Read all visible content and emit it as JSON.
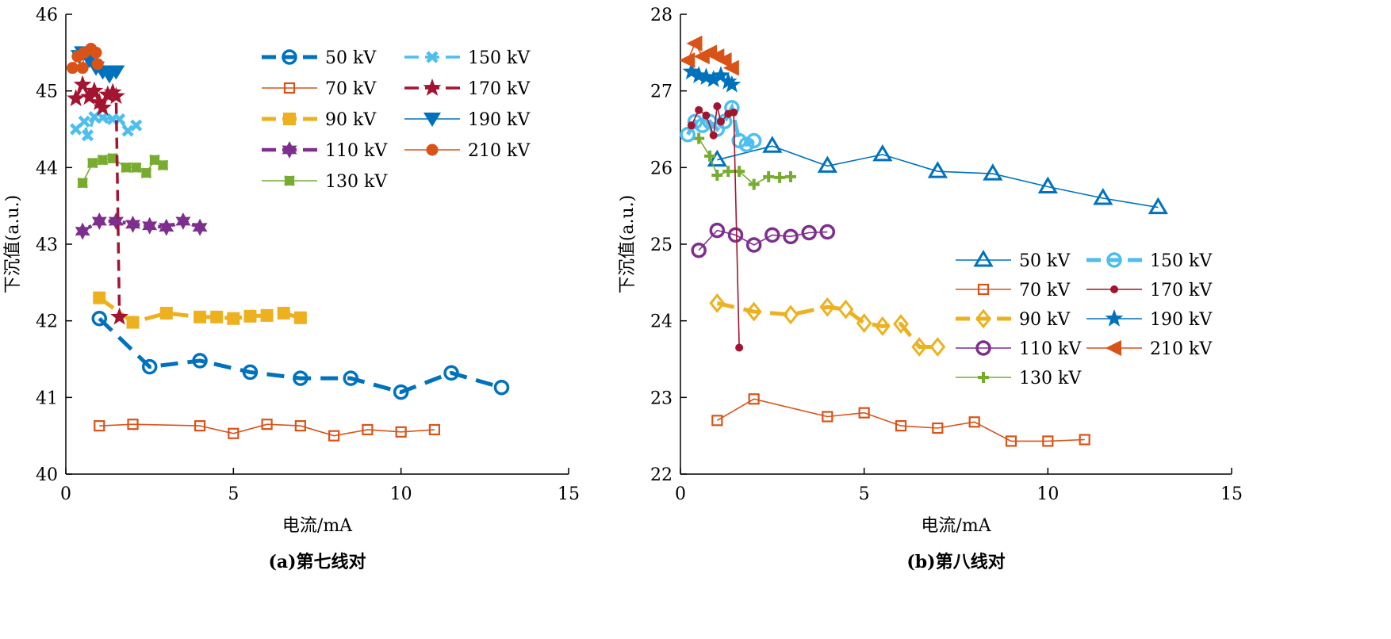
{
  "colors": {
    "blue": "#0072BD",
    "orange": "#D95319",
    "yellow": "#EDB120",
    "purple": "#7E2F8E",
    "green": "#77AC30",
    "lightblue": "#4DBEEE",
    "darkred": "#A2142F"
  },
  "chart_data": [
    {
      "type": "line",
      "title": "(a)第七线对",
      "xlabel": "电流/mA",
      "ylabel": "下沉值(a.u.)",
      "xlim": [
        0,
        15
      ],
      "ylim": [
        40,
        46
      ],
      "xticks": [
        0,
        5,
        10,
        15
      ],
      "yticks": [
        40,
        41,
        42,
        43,
        44,
        45,
        46
      ],
      "grid": false,
      "legend": "top-right",
      "series": [
        {
          "name": "50 kV",
          "color": "#0072BD",
          "marker": "circle-open",
          "line": "thick-dashed",
          "x": [
            1,
            2.5,
            4,
            5.5,
            7,
            8.5,
            10,
            11.5,
            13
          ],
          "y": [
            42.03,
            41.4,
            41.48,
            41.33,
            41.25,
            41.25,
            41.07,
            41.32,
            41.13
          ]
        },
        {
          "name": "70 kV",
          "color": "#D95319",
          "marker": "square-open",
          "line": "solid",
          "x": [
            1,
            2,
            4,
            5,
            6,
            7,
            8,
            9,
            10,
            11
          ],
          "y": [
            40.63,
            40.65,
            40.63,
            40.53,
            40.65,
            40.63,
            40.5,
            40.58,
            40.55,
            40.58
          ]
        },
        {
          "name": "90 kV",
          "color": "#EDB120",
          "marker": "square-filled",
          "line": "thick-dashed",
          "x": [
            1,
            2,
            3,
            4,
            4.5,
            5,
            5.5,
            6,
            6.5,
            7
          ],
          "y": [
            42.3,
            41.98,
            42.1,
            42.05,
            42.05,
            42.03,
            42.06,
            42.07,
            42.1,
            42.04
          ]
        },
        {
          "name": "110 kV",
          "color": "#7E2F8E",
          "marker": "hexagram",
          "line": "dotted",
          "x": [
            0.5,
            1,
            1.5,
            2,
            2.5,
            3,
            3.5,
            4
          ],
          "y": [
            43.17,
            43.3,
            43.3,
            43.26,
            43.24,
            43.22,
            43.3,
            43.22
          ]
        },
        {
          "name": "130 kV",
          "color": "#77AC30",
          "marker": "plus-filled",
          "line": "solid",
          "x": [
            0.5,
            0.8,
            1.1,
            1.4,
            1.8,
            2.1,
            2.4,
            2.65,
            2.9
          ],
          "y": [
            43.8,
            44.06,
            44.1,
            44.12,
            44.0,
            44.0,
            43.93,
            44.1,
            44.03
          ]
        },
        {
          "name": "150 kV",
          "color": "#4DBEEE",
          "marker": "x",
          "line": "dashed",
          "x": [
            0.3,
            0.55,
            0.65,
            0.85,
            1.1,
            1.4,
            1.6,
            1.85,
            2.1
          ],
          "y": [
            44.5,
            44.6,
            44.42,
            44.66,
            44.65,
            44.63,
            44.63,
            44.48,
            44.55
          ]
        },
        {
          "name": "170 kV",
          "color": "#A2142F",
          "marker": "star",
          "line": "dashed",
          "x": [
            0.3,
            0.5,
            0.7,
            0.85,
            1.0,
            1.1,
            1.25,
            1.4,
            1.5,
            1.6
          ],
          "y": [
            44.9,
            45.08,
            44.92,
            45.0,
            44.85,
            44.78,
            44.95,
            44.98,
            44.93,
            42.05
          ]
        },
        {
          "name": "190 kV",
          "color": "#0072BD",
          "marker": "triangle-down",
          "line": "solid",
          "x": [
            0.4,
            0.5,
            0.7,
            0.9,
            1.1,
            1.3,
            1.5
          ],
          "y": [
            45.45,
            45.5,
            45.4,
            45.3,
            45.25,
            45.2,
            45.25
          ]
        },
        {
          "name": "210 kV",
          "color": "#D95319",
          "marker": "circle-filled",
          "line": "solid",
          "x": [
            0.2,
            0.35,
            0.5,
            0.55,
            0.75,
            0.9,
            0.95
          ],
          "y": [
            45.3,
            45.45,
            45.3,
            45.5,
            45.55,
            45.5,
            45.35
          ]
        }
      ]
    },
    {
      "type": "line",
      "title": "(b)第八线对",
      "xlabel": "电流/mA",
      "ylabel": "下沉值(a.u.)",
      "xlim": [
        0,
        15
      ],
      "ylim": [
        22,
        28
      ],
      "xticks": [
        0,
        5,
        10,
        15
      ],
      "yticks": [
        22,
        23,
        24,
        25,
        26,
        27,
        28
      ],
      "grid": false,
      "legend": "right",
      "series": [
        {
          "name": "50 kV",
          "color": "#0072BD",
          "marker": "triangle-open",
          "line": "solid",
          "x": [
            1,
            2.5,
            4,
            5.5,
            7,
            8.5,
            10,
            11.5,
            13
          ],
          "y": [
            26.1,
            26.28,
            26.02,
            26.17,
            25.95,
            25.92,
            25.75,
            25.6,
            25.48
          ]
        },
        {
          "name": "70 kV",
          "color": "#D95319",
          "marker": "square-open",
          "line": "solid",
          "x": [
            1,
            2,
            4,
            5,
            6,
            7,
            8,
            9,
            10,
            11
          ],
          "y": [
            22.7,
            22.98,
            22.75,
            22.8,
            22.63,
            22.6,
            22.68,
            22.43,
            22.43,
            22.45
          ]
        },
        {
          "name": "90 kV",
          "color": "#EDB120",
          "marker": "diamond-open",
          "line": "thick-dashed",
          "x": [
            1,
            2,
            3,
            4,
            4.5,
            5,
            5.5,
            6,
            6.5,
            7
          ],
          "y": [
            24.23,
            24.12,
            24.08,
            24.18,
            24.15,
            23.97,
            23.93,
            23.96,
            23.66,
            23.66
          ]
        },
        {
          "name": "110 kV",
          "color": "#7E2F8E",
          "marker": "circle-open",
          "line": "solid",
          "x": [
            0.5,
            1,
            1.5,
            2,
            2.5,
            3,
            3.5,
            4
          ],
          "y": [
            24.92,
            25.18,
            25.12,
            24.99,
            25.12,
            25.1,
            25.15,
            25.16
          ]
        },
        {
          "name": "130 kV",
          "color": "#77AC30",
          "marker": "plus",
          "line": "solid",
          "x": [
            0.5,
            0.8,
            1,
            1.3,
            1.6,
            2,
            2.4,
            2.7,
            3
          ],
          "y": [
            26.38,
            26.15,
            25.9,
            25.95,
            25.95,
            25.78,
            25.88,
            25.87,
            25.88
          ]
        },
        {
          "name": "150 kV",
          "color": "#4DBEEE",
          "marker": "circle-open",
          "line": "thick-dashed",
          "x": [
            0.2,
            0.4,
            0.6,
            0.8,
            1.0,
            1.2,
            1.4,
            1.6,
            1.8,
            2
          ],
          "y": [
            26.43,
            26.6,
            26.55,
            26.6,
            26.5,
            26.6,
            26.78,
            26.35,
            26.3,
            26.35
          ]
        },
        {
          "name": "170 kV",
          "color": "#A2142F",
          "marker": "dot",
          "line": "solid",
          "x": [
            0.3,
            0.5,
            0.7,
            0.9,
            1.0,
            1.1,
            1.3,
            1.45,
            1.6
          ],
          "y": [
            26.55,
            26.75,
            26.68,
            26.42,
            26.8,
            26.6,
            26.7,
            26.72,
            23.65
          ]
        },
        {
          "name": "190 kV",
          "color": "#0072BD",
          "marker": "star",
          "line": "solid",
          "x": [
            0.3,
            0.5,
            0.7,
            0.9,
            1.1,
            1.3,
            1.4
          ],
          "y": [
            27.25,
            27.2,
            27.18,
            27.15,
            27.2,
            27.12,
            27.08
          ]
        },
        {
          "name": "210 kV",
          "color": "#D95319",
          "marker": "triangle-left",
          "line": "solid",
          "x": [
            0.2,
            0.4,
            0.6,
            0.8,
            1.0,
            1.2,
            1.4
          ],
          "y": [
            27.4,
            27.62,
            27.45,
            27.5,
            27.45,
            27.4,
            27.3
          ]
        }
      ]
    }
  ]
}
